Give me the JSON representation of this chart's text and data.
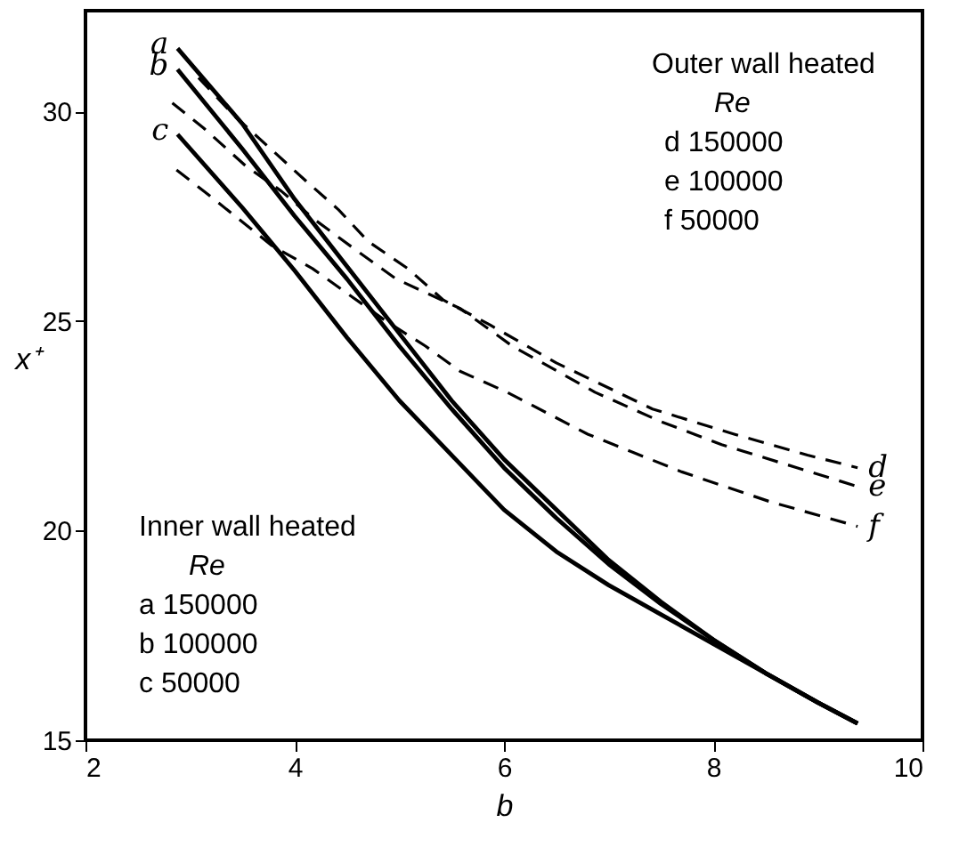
{
  "chart_data": {
    "type": "line",
    "xlabel": "b",
    "ylabel": "x⁺",
    "xlim": [
      2,
      10
    ],
    "xticks": [
      2,
      4,
      6,
      8,
      10
    ],
    "ylim": [
      15,
      32.4
    ],
    "yticks": [
      15,
      20,
      25,
      30
    ],
    "grid": false,
    "annotations": [
      "Outer wall heated",
      "Re",
      "d 150000",
      "e 100000",
      "f 50000",
      "Inner wall heated",
      "Re",
      "a 150000",
      "b 100000",
      "c 50000"
    ],
    "series": [
      {
        "name": "a",
        "color": "#000000",
        "line_style": "solid",
        "x": [
          2.88,
          3.5,
          4,
          4.5,
          5,
          5.5,
          6,
          6.5,
          7,
          7.5,
          8,
          8.5,
          9,
          9.38
        ],
        "values": [
          31.5,
          29.7,
          27.9,
          26.3,
          24.7,
          23.1,
          21.7,
          20.5,
          19.3,
          18.3,
          17.4,
          16.6,
          15.9,
          15.4
        ]
      },
      {
        "name": "b",
        "color": "#000000",
        "line_style": "solid",
        "x": [
          2.88,
          3.5,
          4,
          4.5,
          5,
          5.5,
          6,
          6.5,
          7,
          7.5,
          8,
          8.5,
          9,
          9.38
        ],
        "values": [
          31.0,
          29.1,
          27.5,
          26.0,
          24.4,
          22.9,
          21.5,
          20.3,
          19.2,
          18.25,
          17.4,
          16.6,
          15.9,
          15.4
        ]
      },
      {
        "name": "c",
        "color": "#000000",
        "line_style": "solid",
        "x": [
          2.88,
          3.5,
          4,
          4.5,
          5,
          5.5,
          6,
          6.5,
          7,
          7.5,
          8,
          8.5,
          9,
          9.38
        ],
        "values": [
          29.45,
          27.7,
          26.2,
          24.6,
          23.1,
          21.8,
          20.5,
          19.5,
          18.7,
          18.0,
          17.3,
          16.6,
          15.9,
          15.4
        ]
      },
      {
        "name": "d",
        "color": "#000000",
        "line_style": "dashed",
        "x": [
          3.08,
          3.42,
          3.75,
          4.08,
          4.42,
          4.7,
          5.08,
          5.42,
          5.87,
          6.5,
          7.42,
          8.2,
          8.9,
          9.38
        ],
        "values": [
          30.8,
          29.9,
          29.15,
          28.4,
          27.65,
          26.9,
          26.25,
          25.5,
          24.9,
          24.0,
          22.9,
          22.3,
          21.8,
          21.5
        ]
      },
      {
        "name": "e",
        "color": "#000000",
        "line_style": "dashed",
        "x": [
          2.83,
          3.13,
          3.53,
          3.87,
          4.2,
          4.58,
          4.97,
          5.58,
          6.08,
          6.87,
          7.5,
          8.08,
          8.8,
          9.38
        ],
        "values": [
          30.2,
          29.6,
          28.7,
          28.1,
          27.4,
          26.7,
          26.0,
          25.3,
          24.4,
          23.3,
          22.6,
          22.05,
          21.5,
          21.05
        ]
      },
      {
        "name": "f",
        "color": "#000000",
        "line_style": "dashed",
        "x": [
          2.87,
          3.13,
          3.78,
          4.17,
          4.87,
          5.25,
          5.58,
          6.03,
          6.8,
          7.7,
          8.53,
          9.38
        ],
        "values": [
          28.6,
          28.1,
          26.8,
          26.25,
          25.0,
          24.4,
          23.8,
          23.3,
          22.3,
          21.4,
          20.7,
          20.1
        ]
      }
    ]
  }
}
